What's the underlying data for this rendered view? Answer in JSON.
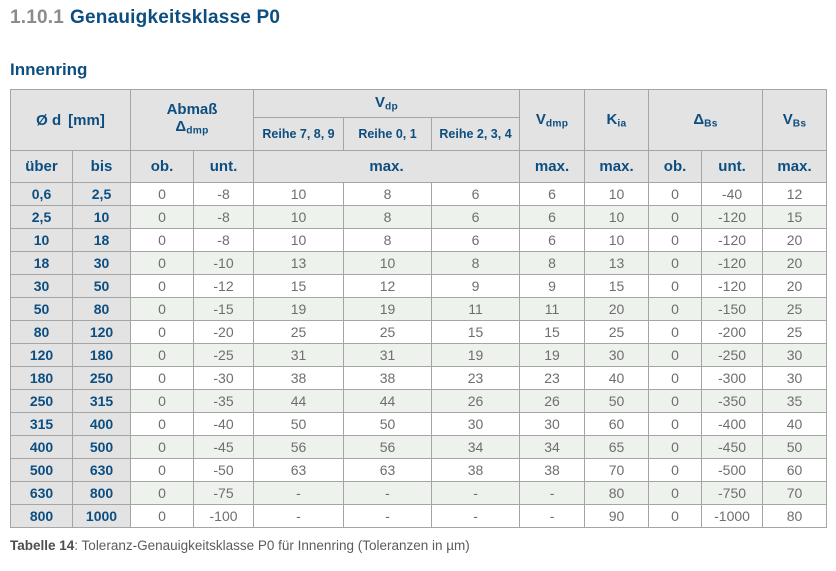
{
  "page": {
    "section_number": "1.10.1",
    "section_title": "Genauigkeitsklasse P0",
    "subsection_title": "Innenring",
    "caption_label": "Tabelle 14",
    "caption_rest": ": Toleranz-Genauigkeitsklasse P0 für Innenring (Toleranzen in µm)"
  },
  "colors": {
    "heading_blue": "#0d4e80",
    "heading_gray": "#8b8b8b",
    "header_bg": "#e3e3e3",
    "row_alt": "#edf3ec",
    "border": "#a5a5a5",
    "data_text": "#6e6e6e",
    "caption_text": "#5c5c5c"
  },
  "table": {
    "header": {
      "diameter_label": "Ø d",
      "diameter_unit": "[mm]",
      "abmass_label": "Abmaß",
      "abmass_symbol": "Δ",
      "abmass_sub": "dmp",
      "vdp_base": "V",
      "vdp_sub": "dp",
      "reihe": [
        "Reihe 7, 8, 9",
        "Reihe 0, 1",
        "Reihe 2, 3, 4"
      ],
      "vdmp_base": "V",
      "vdmp_sub": "dmp",
      "kia_base": "K",
      "kia_sub": "ia",
      "dbs_symbol": "Δ",
      "dbs_sub": "Bs",
      "vbs_base": "V",
      "vbs_sub": "Bs",
      "col_ueber": "über",
      "col_bis": "bis",
      "col_ob1": "ob.",
      "col_unt1": "unt.",
      "col_max_vdp": "max.",
      "col_max_vdmp": "max.",
      "col_max_kia": "max.",
      "col_ob2": "ob.",
      "col_unt2": "unt.",
      "col_max_vbs": "max."
    },
    "rows": [
      {
        "ueber": "0,6",
        "bis": "2,5",
        "values": [
          "0",
          "-8",
          "10",
          "8",
          "6",
          "6",
          "10",
          "0",
          "-40",
          "12"
        ]
      },
      {
        "ueber": "2,5",
        "bis": "10",
        "values": [
          "0",
          "-8",
          "10",
          "8",
          "6",
          "6",
          "10",
          "0",
          "-120",
          "15"
        ]
      },
      {
        "ueber": "10",
        "bis": "18",
        "values": [
          "0",
          "-8",
          "10",
          "8",
          "6",
          "6",
          "10",
          "0",
          "-120",
          "20"
        ]
      },
      {
        "ueber": "18",
        "bis": "30",
        "values": [
          "0",
          "-10",
          "13",
          "10",
          "8",
          "8",
          "13",
          "0",
          "-120",
          "20"
        ]
      },
      {
        "ueber": "30",
        "bis": "50",
        "values": [
          "0",
          "-12",
          "15",
          "12",
          "9",
          "9",
          "15",
          "0",
          "-120",
          "20"
        ]
      },
      {
        "ueber": "50",
        "bis": "80",
        "values": [
          "0",
          "-15",
          "19",
          "19",
          "11",
          "11",
          "20",
          "0",
          "-150",
          "25"
        ]
      },
      {
        "ueber": "80",
        "bis": "120",
        "values": [
          "0",
          "-20",
          "25",
          "25",
          "15",
          "15",
          "25",
          "0",
          "-200",
          "25"
        ]
      },
      {
        "ueber": "120",
        "bis": "180",
        "values": [
          "0",
          "-25",
          "31",
          "31",
          "19",
          "19",
          "30",
          "0",
          "-250",
          "30"
        ]
      },
      {
        "ueber": "180",
        "bis": "250",
        "values": [
          "0",
          "-30",
          "38",
          "38",
          "23",
          "23",
          "40",
          "0",
          "-300",
          "30"
        ]
      },
      {
        "ueber": "250",
        "bis": "315",
        "values": [
          "0",
          "-35",
          "44",
          "44",
          "26",
          "26",
          "50",
          "0",
          "-350",
          "35"
        ]
      },
      {
        "ueber": "315",
        "bis": "400",
        "values": [
          "0",
          "-40",
          "50",
          "50",
          "30",
          "30",
          "60",
          "0",
          "-400",
          "40"
        ]
      },
      {
        "ueber": "400",
        "bis": "500",
        "values": [
          "0",
          "-45",
          "56",
          "56",
          "34",
          "34",
          "65",
          "0",
          "-450",
          "50"
        ]
      },
      {
        "ueber": "500",
        "bis": "630",
        "values": [
          "0",
          "-50",
          "63",
          "63",
          "38",
          "38",
          "70",
          "0",
          "-500",
          "60"
        ]
      },
      {
        "ueber": "630",
        "bis": "800",
        "values": [
          "0",
          "-75",
          "-",
          "-",
          "-",
          "-",
          "80",
          "0",
          "-750",
          "70"
        ]
      },
      {
        "ueber": "800",
        "bis": "1000",
        "values": [
          "0",
          "-100",
          "-",
          "-",
          "-",
          "-",
          "90",
          "0",
          "-1000",
          "80"
        ]
      }
    ]
  }
}
